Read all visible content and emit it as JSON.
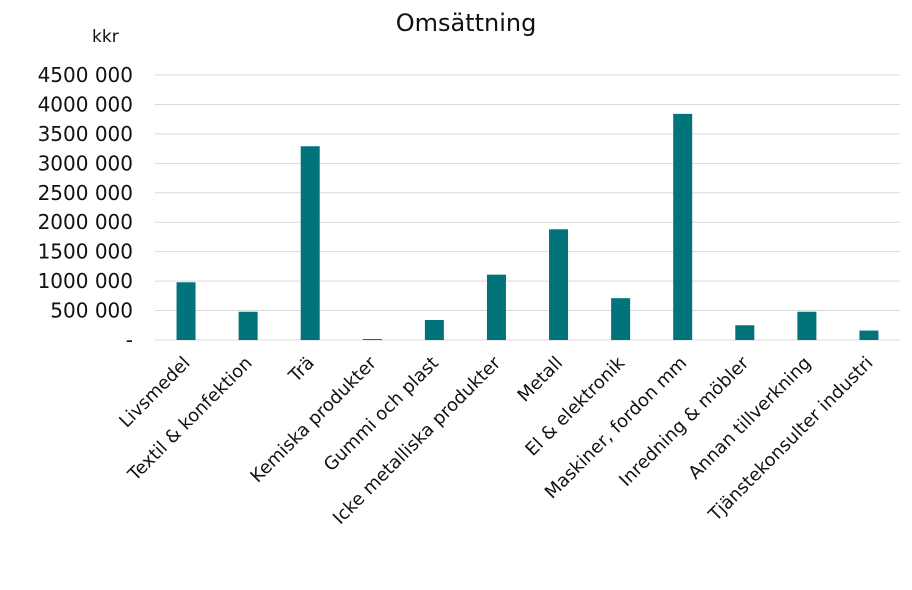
{
  "chart_data": {
    "type": "bar",
    "title": "Omsättning",
    "unit": "kkr",
    "xlabel": "",
    "ylabel": "",
    "ylim": [
      0,
      4500000
    ],
    "yticks": [
      0,
      500000,
      1000000,
      1500000,
      2000000,
      2500000,
      3000000,
      3500000,
      4000000,
      4500000
    ],
    "ytick_labels": [
      "-",
      "500 000",
      "1000 000",
      "1500 000",
      "2000 000",
      "2500 000",
      "3000 000",
      "3500 000",
      "4000 000",
      "4500 000"
    ],
    "grid": true,
    "legend": "none",
    "bar_color": "#00747A",
    "categories": [
      "Livsmedel",
      "Textil & konfektion",
      "Trä",
      "Kemiska produkter",
      "Gummi och plast",
      "Icke metalliska produkter",
      "Metall",
      "El & elektronik",
      "Maskiner, fordon mm",
      "Inredning & möbler",
      "Annan tillverkning",
      "Tjänstekonsulter industri"
    ],
    "values": [
      980000,
      480000,
      3290000,
      15000,
      340000,
      1110000,
      1880000,
      710000,
      3840000,
      250000,
      480000,
      160000
    ]
  }
}
